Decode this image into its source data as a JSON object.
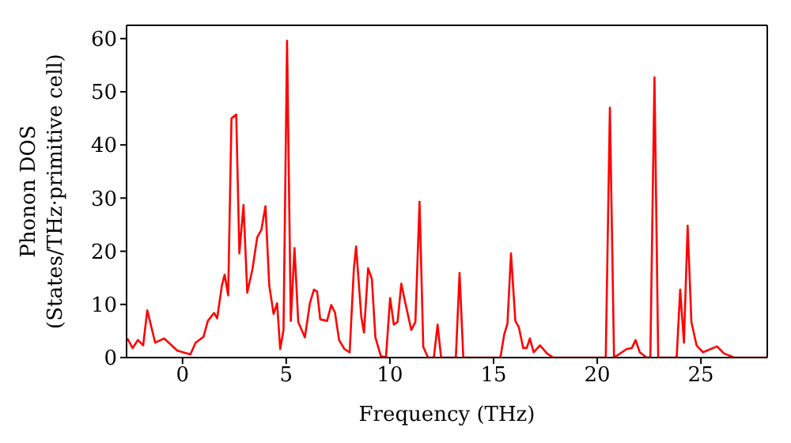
{
  "chart_data": {
    "type": "line",
    "xlabel": "Frequency (THz)",
    "ylabel": "Phonon DOS\n(States/THz·primitive cell)",
    "xlim": [
      -2.7,
      28.2
    ],
    "ylim": [
      0,
      62.5
    ],
    "xticks": [
      0,
      5,
      10,
      15,
      20,
      25
    ],
    "yticks": [
      0,
      10,
      20,
      30,
      40,
      50,
      60
    ],
    "legend": false,
    "marker": "none",
    "line_style": "solid",
    "series": [
      {
        "color": "#ff0000",
        "x": [
          -2.66,
          -2.41,
          -2.15,
          -1.9,
          -1.7,
          -1.32,
          -0.89,
          -0.25,
          0.38,
          0.63,
          1.01,
          1.22,
          1.52,
          1.67,
          1.9,
          2.03,
          2.2,
          2.36,
          2.59,
          2.74,
          2.94,
          3.12,
          3.37,
          3.6,
          3.8,
          4.0,
          4.18,
          4.39,
          4.56,
          4.71,
          4.87,
          5.04,
          5.22,
          5.4,
          5.58,
          5.9,
          6.14,
          6.34,
          6.49,
          6.64,
          6.97,
          7.17,
          7.35,
          7.55,
          7.81,
          8.06,
          8.26,
          8.37,
          8.62,
          8.75,
          8.95,
          9.13,
          9.3,
          9.56,
          9.81,
          10.01,
          10.19,
          10.37,
          10.55,
          10.72,
          11.03,
          11.23,
          11.43,
          11.61,
          11.84,
          12.12,
          12.3,
          12.47,
          13.18,
          13.36,
          13.54,
          15.33,
          15.51,
          15.67,
          15.84,
          16.05,
          16.22,
          16.43,
          16.6,
          16.75,
          16.93,
          17.24,
          17.57,
          17.87,
          20.41,
          20.61,
          20.81,
          21.42,
          21.67,
          21.85,
          22.05,
          22.38,
          22.56,
          22.76,
          22.94,
          23.83,
          24.0,
          24.18,
          24.36,
          24.54,
          24.79,
          25.1,
          25.78,
          26.1,
          26.6,
          28.2
        ],
        "values": [
          3.6,
          1.8,
          3.3,
          2.3,
          8.9,
          2.8,
          3.6,
          1.3,
          0.6,
          2.8,
          3.9,
          6.9,
          8.4,
          7.4,
          13.6,
          15.6,
          11.7,
          45,
          45.7,
          19.6,
          28.7,
          12.2,
          16.6,
          22.6,
          24,
          28.5,
          13.6,
          8.2,
          10.2,
          1.6,
          5.2,
          59.6,
          6.9,
          20.6,
          6.7,
          3.8,
          10.2,
          12.8,
          12.4,
          7.2,
          6.9,
          9.9,
          8.5,
          3.3,
          1.6,
          1,
          16.6,
          20.9,
          7.7,
          4.7,
          16.8,
          14.8,
          3.8,
          0.3,
          0,
          11.2,
          6.2,
          6.7,
          13.9,
          10.7,
          5.2,
          6.7,
          29.3,
          2,
          0,
          0,
          6.2,
          0,
          0,
          15.9,
          0,
          0,
          4.3,
          6.4,
          19.6,
          6.9,
          5.7,
          1.8,
          1.8,
          3.6,
          1,
          2.3,
          0.8,
          0,
          0,
          47,
          0,
          1.6,
          1.8,
          3.3,
          1,
          0,
          0,
          52.7,
          0,
          0,
          12.8,
          2.8,
          24.8,
          6.7,
          2.3,
          1,
          2.1,
          0.8,
          0,
          0
        ]
      }
    ]
  }
}
